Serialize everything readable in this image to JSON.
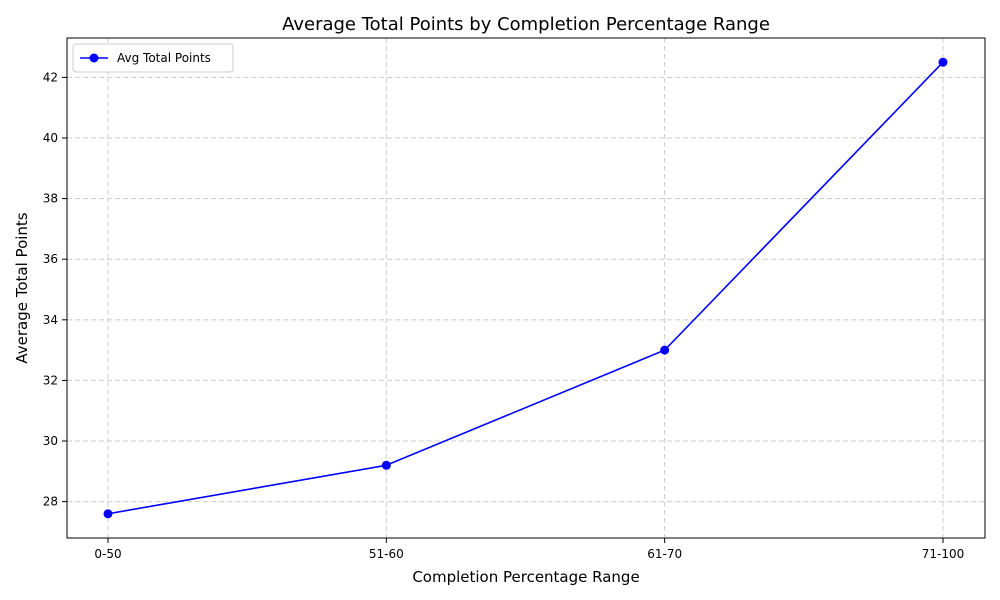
{
  "chart_data": {
    "type": "line",
    "title": "Average Total Points by Completion Percentage Range",
    "xlabel": "Completion Percentage Range",
    "ylabel": "Average Total Points",
    "categories": [
      "0-50",
      "51-60",
      "61-70",
      "71-100"
    ],
    "series": [
      {
        "name": "Avg Total Points",
        "values": [
          27.6,
          29.2,
          33.0,
          42.5
        ],
        "color": "#0000ff",
        "marker": "circle"
      }
    ],
    "ylim": [
      26.8,
      43.3
    ],
    "yticks": [
      28,
      30,
      32,
      34,
      36,
      38,
      40,
      42
    ],
    "grid": true,
    "legend_position": "top-left"
  }
}
